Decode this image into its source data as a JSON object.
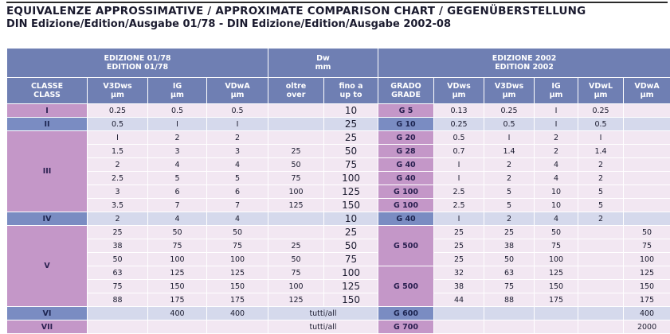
{
  "title": {
    "line1": "EQUIVALENZE APPROSSIMATIVE / APPROXIMATE COMPARISON CHART / GEGENÜBERSTELLUNG",
    "line2": "DIN Edizione/Edition/Ausgabe  01/78 - DIN Edizione/Edition/Ausgabe 2002-08"
  },
  "headers": {
    "group_old_1": "EDIZIONE 01/78",
    "group_old_2": "EDITION 01/78",
    "group_dw_1": "Dw",
    "group_dw_2": "mm",
    "group_new_1": "EDIZIONE 2002",
    "group_new_2": "EDITION 2002",
    "classe_1": "CLASSE",
    "classe_2": "CLASS",
    "v3dws_1": "V3Dws",
    "v3dws_2": "µm",
    "ig_1": "IG",
    "ig_2": "µm",
    "vdwa_1": "VDwA",
    "vdwa_2": "µm",
    "oltre_1": "oltre",
    "oltre_2": "over",
    "fino_1": "fino a",
    "fino_2": "up to",
    "grado_1": "GRADO",
    "grado_2": "GRADE",
    "vdws_1": "VDws",
    "vdws_2": "µm",
    "v3dws2_1": "V3Dws",
    "v3dws2_2": "µm",
    "ig2_1": "IG",
    "ig2_2": "µm",
    "vdwl_1": "VDwL",
    "vdwl_2": "µm",
    "vdwa2_1": "VDwA",
    "vdwa2_2": "µm"
  },
  "classes": {
    "I": "I",
    "II": "II",
    "III": "III",
    "IV": "IV",
    "V": "V",
    "VI": "VI",
    "VII": "VII"
  },
  "rows": [
    {
      "v3dws": "0.25",
      "ig": "0.5",
      "vdwa": "0.5",
      "over": "",
      "upto": "10",
      "grade": "G 5",
      "vdws": "0.13",
      "v3dws2": "0.25",
      "ig2": "I",
      "vdwl": "0.25",
      "vdwa2": ""
    },
    {
      "v3dws": "0.5",
      "ig": "I",
      "vdwa": "I",
      "over": "",
      "upto": "25",
      "grade": "G 10",
      "vdws": "0.25",
      "v3dws2": "0.5",
      "ig2": "I",
      "vdwl": "0.5",
      "vdwa2": ""
    },
    {
      "v3dws": "I",
      "ig": "2",
      "vdwa": "2",
      "over": "",
      "upto": "25",
      "grade": "G 20",
      "vdws": "0.5",
      "v3dws2": "I",
      "ig2": "2",
      "vdwl": "I",
      "vdwa2": ""
    },
    {
      "v3dws": "1.5",
      "ig": "3",
      "vdwa": "3",
      "over": "25",
      "upto": "50",
      "grade": "G 28",
      "vdws": "0.7",
      "v3dws2": "1.4",
      "ig2": "2",
      "vdwl": "1.4",
      "vdwa2": ""
    },
    {
      "v3dws": "2",
      "ig": "4",
      "vdwa": "4",
      "over": "50",
      "upto": "75",
      "grade": "G 40",
      "vdws": "I",
      "v3dws2": "2",
      "ig2": "4",
      "vdwl": "2",
      "vdwa2": ""
    },
    {
      "v3dws": "2.5",
      "ig": "5",
      "vdwa": "5",
      "over": "75",
      "upto": "100",
      "grade": "G 40",
      "vdws": "I",
      "v3dws2": "2",
      "ig2": "4",
      "vdwl": "2",
      "vdwa2": ""
    },
    {
      "v3dws": "3",
      "ig": "6",
      "vdwa": "6",
      "over": "100",
      "upto": "125",
      "grade": "G 100",
      "vdws": "2.5",
      "v3dws2": "5",
      "ig2": "10",
      "vdwl": "5",
      "vdwa2": ""
    },
    {
      "v3dws": "3.5",
      "ig": "7",
      "vdwa": "7",
      "over": "125",
      "upto": "150",
      "grade": "G 100",
      "vdws": "2.5",
      "v3dws2": "5",
      "ig2": "10",
      "vdwl": "5",
      "vdwa2": ""
    },
    {
      "v3dws": "2",
      "ig": "4",
      "vdwa": "4",
      "over": "",
      "upto": "10",
      "grade": "G 40",
      "vdws": "I",
      "v3dws2": "2",
      "ig2": "4",
      "vdwl": "2",
      "vdwa2": ""
    },
    {
      "v3dws": "25",
      "ig": "50",
      "vdwa": "50",
      "over": "",
      "upto": "25",
      "grade": "",
      "vdws": "25",
      "v3dws2": "25",
      "ig2": "50",
      "vdwl": "",
      "vdwa2": "50"
    },
    {
      "v3dws": "38",
      "ig": "75",
      "vdwa": "75",
      "over": "25",
      "upto": "50",
      "grade": "G 500",
      "vdws": "25",
      "v3dws2": "38",
      "ig2": "75",
      "vdwl": "",
      "vdwa2": "75"
    },
    {
      "v3dws": "50",
      "ig": "100",
      "vdwa": "100",
      "over": "50",
      "upto": "75",
      "grade": "",
      "vdws": "25",
      "v3dws2": "50",
      "ig2": "100",
      "vdwl": "",
      "vdwa2": "100"
    },
    {
      "v3dws": "63",
      "ig": "125",
      "vdwa": "125",
      "over": "75",
      "upto": "100",
      "grade": "",
      "vdws": "32",
      "v3dws2": "63",
      "ig2": "125",
      "vdwl": "",
      "vdwa2": "125"
    },
    {
      "v3dws": "75",
      "ig": "150",
      "vdwa": "150",
      "over": "100",
      "upto": "125",
      "grade": "G 500",
      "vdws": "38",
      "v3dws2": "75",
      "ig2": "150",
      "vdwl": "",
      "vdwa2": "150"
    },
    {
      "v3dws": "88",
      "ig": "175",
      "vdwa": "175",
      "over": "125",
      "upto": "150",
      "grade": "",
      "vdws": "44",
      "v3dws2": "88",
      "ig2": "175",
      "vdwl": "",
      "vdwa2": "175"
    },
    {
      "v3dws": "",
      "ig": "400",
      "vdwa": "400",
      "over": "",
      "upto": "tutti/all",
      "grade": "G 600",
      "vdws": "",
      "v3dws2": "",
      "ig2": "",
      "vdwl": "",
      "vdwa2": "400"
    },
    {
      "v3dws": "",
      "ig": "",
      "vdwa": "",
      "over": "",
      "upto": "tutti/all",
      "grade": "G 700",
      "vdws": "",
      "v3dws2": "",
      "ig2": "",
      "vdwl": "",
      "vdwa2": "2000"
    }
  ],
  "colors": {
    "header": "#6f7fb3",
    "class_pink": "#c497c8",
    "class_blue": "#7a8cc2",
    "row_pink": "#f2e7f2",
    "row_lavender": "#d5d9ec"
  }
}
